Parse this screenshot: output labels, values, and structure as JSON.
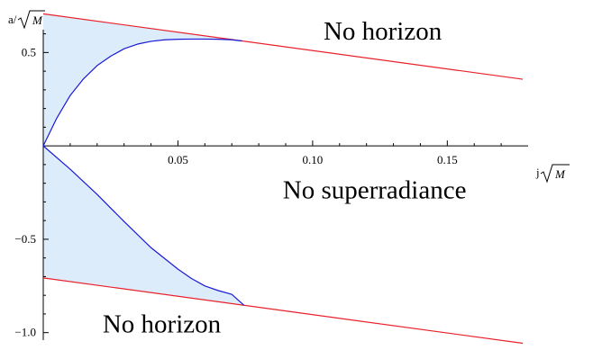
{
  "chart_data": {
    "type": "line",
    "xlabel": "j",
    "ylabel": "a/",
    "sqrt_symbol": "M",
    "xlim": [
      0,
      0.18
    ],
    "ylim": [
      -1.04,
      0.68
    ],
    "x_ticks": [
      {
        "value": 0.05,
        "label": "0.05"
      },
      {
        "value": 0.1,
        "label": "0.10"
      },
      {
        "value": 0.15,
        "label": "0.15"
      }
    ],
    "y_ticks": [
      {
        "value": 0.5,
        "label": "0.5"
      },
      {
        "value": -0.5,
        "label": "−0.5"
      },
      {
        "value": -1.0,
        "label": "−1.0"
      }
    ],
    "series": [
      {
        "color": "#e8202a",
        "points": [
          [
            0,
            0.707
          ],
          [
            0.178,
            0.357
          ]
        ]
      },
      {
        "color": "#e8202a",
        "points": [
          [
            0,
            -0.707
          ],
          [
            0.178,
            -1.057
          ]
        ]
      },
      {
        "color": "#1a1ad6",
        "points": [
          [
            0,
            0
          ],
          [
            0.005,
            0.148
          ],
          [
            0.01,
            0.27
          ],
          [
            0.015,
            0.36
          ],
          [
            0.02,
            0.43
          ],
          [
            0.025,
            0.48
          ],
          [
            0.03,
            0.52
          ],
          [
            0.035,
            0.545
          ],
          [
            0.04,
            0.56
          ],
          [
            0.045,
            0.568
          ],
          [
            0.05,
            0.571
          ],
          [
            0.055,
            0.572
          ],
          [
            0.06,
            0.572
          ],
          [
            0.065,
            0.571
          ],
          [
            0.07,
            0.568
          ],
          [
            0.0738,
            0.562
          ]
        ]
      },
      {
        "color": "#1a1ad6",
        "points": [
          [
            0,
            0
          ],
          [
            0.01,
            -0.125
          ],
          [
            0.02,
            -0.26
          ],
          [
            0.03,
            -0.405
          ],
          [
            0.04,
            -0.545
          ],
          [
            0.05,
            -0.66
          ],
          [
            0.055,
            -0.71
          ],
          [
            0.06,
            -0.75
          ],
          [
            0.065,
            -0.775
          ],
          [
            0.07,
            -0.795
          ],
          [
            0.0745,
            -0.853
          ]
        ]
      }
    ],
    "shaded_regions": [
      {
        "color": "#dcecfb",
        "upper": [
          [
            0,
            0.707
          ],
          [
            0.0738,
            0.562
          ]
        ],
        "lower": [
          [
            0,
            0
          ],
          [
            0.005,
            0.148
          ],
          [
            0.01,
            0.27
          ],
          [
            0.015,
            0.36
          ],
          [
            0.02,
            0.43
          ],
          [
            0.025,
            0.48
          ],
          [
            0.03,
            0.52
          ],
          [
            0.035,
            0.545
          ],
          [
            0.04,
            0.56
          ],
          [
            0.045,
            0.568
          ],
          [
            0.05,
            0.571
          ],
          [
            0.055,
            0.572
          ],
          [
            0.06,
            0.572
          ],
          [
            0.065,
            0.571
          ],
          [
            0.07,
            0.568
          ],
          [
            0.0738,
            0.562
          ]
        ]
      },
      {
        "color": "#dcecfb",
        "upper": [
          [
            0,
            0
          ],
          [
            0.01,
            -0.125
          ],
          [
            0.02,
            -0.26
          ],
          [
            0.03,
            -0.405
          ],
          [
            0.04,
            -0.545
          ],
          [
            0.05,
            -0.66
          ],
          [
            0.055,
            -0.71
          ],
          [
            0.06,
            -0.75
          ],
          [
            0.065,
            -0.775
          ],
          [
            0.07,
            -0.795
          ],
          [
            0.0745,
            -0.853
          ]
        ],
        "lower": [
          [
            0,
            -0.707
          ],
          [
            0.0745,
            -0.853
          ]
        ]
      }
    ],
    "annotations": [
      {
        "text": "No horizon",
        "x": 0.126,
        "y": 0.57
      },
      {
        "text": "No superradiance",
        "x": 0.123,
        "y": -0.28
      },
      {
        "text": "No horizon",
        "x": 0.044,
        "y": -1.0
      }
    ]
  }
}
